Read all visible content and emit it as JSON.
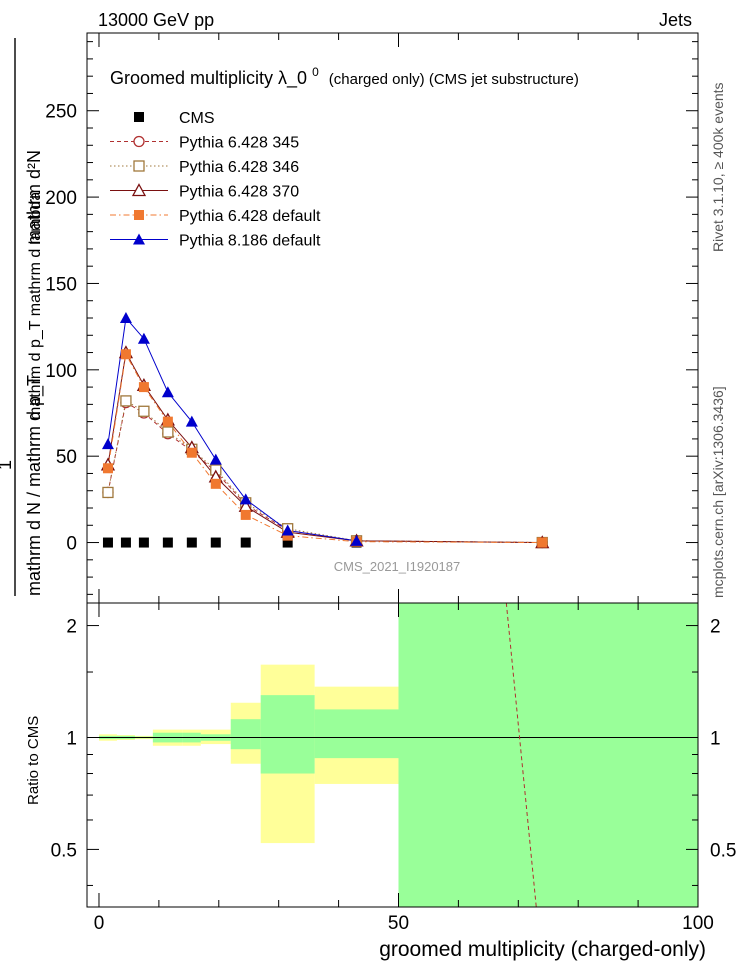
{
  "header": {
    "left": "13000 GeV pp",
    "right": "Jets"
  },
  "side_labels": {
    "rivet": "Rivet 3.1.10, ≥ 400k events",
    "site": "mcplots.cern.ch [arXiv:1306.3436]"
  },
  "watermark": "CMS_2021_I1920187",
  "chart_data": [
    {
      "type": "scatter",
      "title_main": "Groomed multiplicity  λ_0",
      "title_sup": "0",
      "title_rest": "(charged only) (CMS jet substructure)",
      "ylabel_top": "mathrm d²N",
      "ylabel_sub": "mathrm d p_T mathrm d lambda",
      "ylabel_one": "1",
      "ylabel_bottom": "mathrm d N / mathrm d p_T",
      "xlim": [
        -2,
        100
      ],
      "ylim": [
        -35,
        295
      ],
      "yticks": [
        "0",
        "50",
        "100",
        "150",
        "200",
        "250"
      ],
      "legend_position": "top-left",
      "series": [
        {
          "name": "CMS",
          "color": "#000000",
          "marker": "filled-square",
          "line": "none",
          "x": [
            1.5,
            4.5,
            7.5,
            11.5,
            15.5,
            19.5,
            24.5,
            31.5,
            43,
            74
          ],
          "y": [
            0,
            0,
            0,
            0,
            0,
            0,
            0,
            0,
            0,
            0
          ]
        },
        {
          "name": "Pythia 6.428 345",
          "color": "#b03030",
          "marker": "open-circle",
          "line": "dashed",
          "x": [
            1.5,
            4.5,
            7.5,
            11.5,
            15.5,
            19.5,
            24.5,
            31.5,
            43,
            74
          ],
          "y": [
            29,
            81,
            75,
            63,
            53,
            41,
            22,
            7,
            1,
            0
          ]
        },
        {
          "name": "Pythia 6.428 346",
          "color": "#a0783c",
          "marker": "open-square",
          "line": "dotted",
          "x": [
            1.5,
            4.5,
            7.5,
            11.5,
            15.5,
            19.5,
            24.5,
            31.5,
            43,
            74
          ],
          "y": [
            29,
            82,
            76,
            64,
            54,
            42,
            23,
            8,
            1,
            0
          ]
        },
        {
          "name": "Pythia 6.428 370",
          "color": "#7a1010",
          "marker": "open-triangle",
          "line": "solid",
          "x": [
            1.5,
            4.5,
            7.5,
            11.5,
            15.5,
            19.5,
            24.5,
            31.5,
            43,
            74
          ],
          "y": [
            45,
            110,
            91,
            71,
            55,
            38,
            21,
            6,
            1,
            0
          ]
        },
        {
          "name": "Pythia 6.428 default",
          "color": "#f07830",
          "marker": "filled-square",
          "line": "dashdot",
          "x": [
            1.5,
            4.5,
            7.5,
            11.5,
            15.5,
            19.5,
            24.5,
            31.5,
            43,
            74
          ],
          "y": [
            43,
            109,
            90,
            70,
            52,
            34,
            16,
            4,
            0.5,
            0
          ]
        },
        {
          "name": "Pythia 8.186 default",
          "color": "#0000cc",
          "marker": "filled-triangle",
          "line": "solid",
          "x": [
            1.5,
            4.5,
            7.5,
            11.5,
            15.5,
            19.5,
            24.5,
            31.5,
            43
          ],
          "y": [
            57,
            130,
            118,
            87,
            70,
            48,
            25,
            7,
            1
          ]
        }
      ]
    },
    {
      "type": "area",
      "ylabel": "Ratio to CMS",
      "xlabel": "groomed multiplicity (charged-only)",
      "xlim": [
        -2,
        100
      ],
      "ylim": [
        0.35,
        2.3
      ],
      "xticks": [
        "0",
        "50",
        "100"
      ],
      "yticks": [
        "0.5",
        "1",
        "2"
      ],
      "ytick_values": [
        0.5,
        1,
        2
      ],
      "reference": 1,
      "yellow_band": [
        {
          "x0": 0,
          "x1": 3,
          "lo": 0.98,
          "hi": 1.02
        },
        {
          "x0": 3,
          "x1": 6,
          "lo": 0.985,
          "hi": 1.015
        },
        {
          "x0": 6,
          "x1": 9,
          "lo": 0.99,
          "hi": 1.01
        },
        {
          "x0": 9,
          "x1": 14,
          "lo": 0.95,
          "hi": 1.05
        },
        {
          "x0": 14,
          "x1": 17,
          "lo": 0.95,
          "hi": 1.05
        },
        {
          "x0": 17,
          "x1": 22,
          "lo": 0.96,
          "hi": 1.05
        },
        {
          "x0": 22,
          "x1": 27,
          "lo": 0.85,
          "hi": 1.24
        },
        {
          "x0": 27,
          "x1": 36,
          "lo": 0.52,
          "hi": 1.57
        },
        {
          "x0": 36,
          "x1": 50,
          "lo": 0.75,
          "hi": 1.37
        }
      ],
      "green_band": [
        {
          "x0": 0,
          "x1": 3,
          "lo": 0.99,
          "hi": 1.01
        },
        {
          "x0": 3,
          "x1": 6,
          "lo": 0.99,
          "hi": 1.01
        },
        {
          "x0": 6,
          "x1": 9,
          "lo": 0.995,
          "hi": 1.005
        },
        {
          "x0": 9,
          "x1": 14,
          "lo": 0.97,
          "hi": 1.03
        },
        {
          "x0": 14,
          "x1": 17,
          "lo": 0.97,
          "hi": 1.03
        },
        {
          "x0": 17,
          "x1": 22,
          "lo": 0.98,
          "hi": 1.02
        },
        {
          "x0": 22,
          "x1": 27,
          "lo": 0.93,
          "hi": 1.12
        },
        {
          "x0": 27,
          "x1": 36,
          "lo": 0.8,
          "hi": 1.3
        },
        {
          "x0": 36,
          "x1": 50,
          "lo": 0.88,
          "hi": 1.19
        },
        {
          "x0": 50,
          "x1": 100,
          "lo": 0.35,
          "hi": 2.3
        }
      ],
      "series": [
        {
          "color": "#b03030",
          "line": "dashed",
          "x": [
            68,
            73
          ],
          "y": [
            2.3,
            0.35
          ]
        }
      ]
    }
  ]
}
